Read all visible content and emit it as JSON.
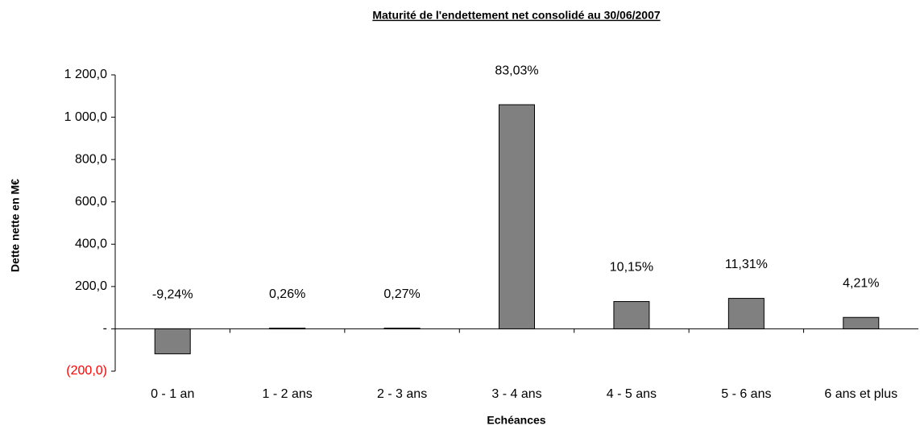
{
  "chart_data": {
    "type": "bar",
    "title": "Maturité de l'endettement net consolidé au 30/06/2007",
    "y_label": "Dette nette en M€",
    "x_label": "Echéances",
    "categories": [
      "0 - 1 an",
      "1 - 2 ans",
      "2 - 3 ans",
      "3 - 4 ans",
      "4 - 5 ans",
      "5 - 6 ans",
      "6 ans et plus"
    ],
    "values": [
      -118,
      3.3,
      3.4,
      1059,
      129,
      144,
      54
    ],
    "shares": [
      -9.24,
      0.26,
      0.27,
      83.03,
      10.15,
      11.31,
      4.21
    ],
    "share_labels": [
      "-9,24%",
      "0,26%",
      "0,27%",
      "83,03%",
      "10,15%",
      "11,31%",
      "4,21%"
    ],
    "color": "#808080",
    "negative_tick_color": "#ff0000",
    "ylim": [
      -200,
      1200
    ],
    "yticks": [
      {
        "value": -200,
        "label": "(200,0)"
      },
      {
        "value": 0,
        "label": "-"
      },
      {
        "value": 200,
        "label": "200,0"
      },
      {
        "value": 400,
        "label": "400,0"
      },
      {
        "value": 600,
        "label": "600,0"
      },
      {
        "value": 800,
        "label": "800,0"
      },
      {
        "value": 1000,
        "label": "1 000,0"
      },
      {
        "value": 1200,
        "label": "1 200,0"
      }
    ],
    "grid": false
  }
}
